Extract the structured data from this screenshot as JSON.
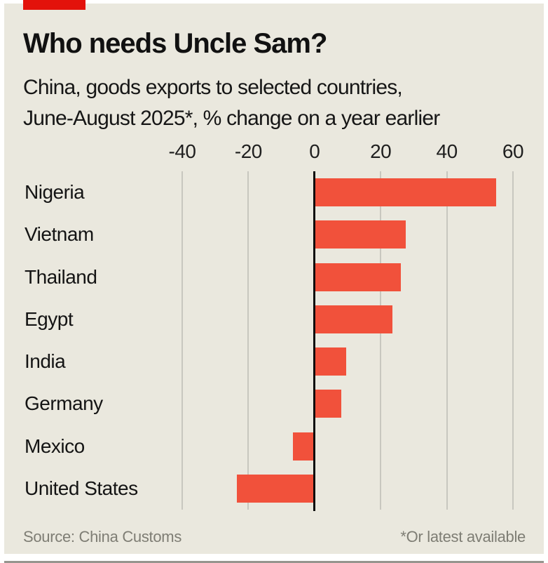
{
  "brand": {
    "red_tab_color": "#e3120b"
  },
  "header": {
    "title": "Who needs Uncle Sam?",
    "subtitle_lines": [
      "China, goods exports to selected countries,",
      "June-August 2025*, % change on a year earlier"
    ]
  },
  "footer": {
    "source": "Source: China Customs",
    "footnote": "*Or latest available"
  },
  "chart_data": {
    "type": "bar",
    "orientation": "horizontal",
    "title": "Who needs Uncle Sam?",
    "subtitle": "China, goods exports to selected countries, June-August 2025*, % change on a year earlier",
    "categories": [
      "Nigeria",
      "Vietnam",
      "Thailand",
      "Egypt",
      "India",
      "Germany",
      "Mexico",
      "United States"
    ],
    "values": [
      55,
      27.5,
      26,
      23.5,
      9.5,
      8,
      -6.5,
      -23.5
    ],
    "xlabel": "",
    "ylabel": "",
    "xlim": [
      -40,
      60
    ],
    "ticks": [
      -40,
      -20,
      0,
      20,
      40,
      60
    ],
    "grid": "vertical",
    "legend": "none",
    "bar_color": "#f1513b",
    "background_color": "#eae8de",
    "zero_line_color": "#0c0c0c",
    "gridline_color": "#c8c7bf",
    "source": "Source: China Customs",
    "footnote": "*Or latest available"
  }
}
